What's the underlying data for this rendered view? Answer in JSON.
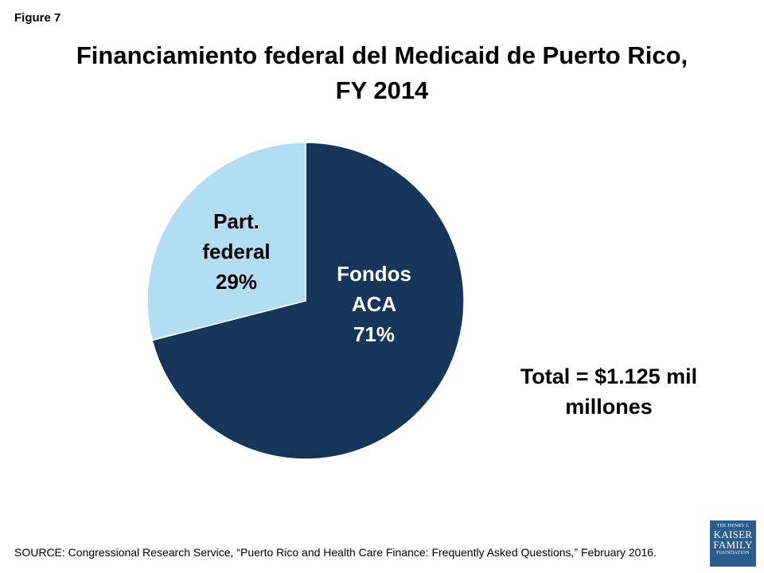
{
  "figure_label": "Figure 7",
  "title_line1": "Financiamiento federal del Medicaid de Puerto Rico,",
  "title_line2": "FY 2014",
  "total_line1": "Total = $1.125 mil",
  "total_line2": "millones",
  "source": "SOURCE: Congressional Research Service, “Puerto Rico and Health Care Finance: Frequently Asked Questions,” February 2016.",
  "logo": {
    "line1": "THE HENRY J.",
    "line2": "KAISER",
    "line3": "FAMILY",
    "line4": "FOUNDATION"
  },
  "chart_data": {
    "type": "pie",
    "title": "Financiamiento federal del Medicaid de Puerto Rico, FY 2014",
    "slices": [
      {
        "name": "Fondos ACA",
        "label_lines": [
          "Fondos",
          "ACA",
          "71%"
        ],
        "value": 71,
        "color": "#15355b",
        "label_color": "#ffffff"
      },
      {
        "name": "Part. federal",
        "label_lines": [
          "Part.",
          "federal",
          "29%"
        ],
        "value": 29,
        "color": "#b3ddf3",
        "label_color": "#000000"
      }
    ]
  }
}
